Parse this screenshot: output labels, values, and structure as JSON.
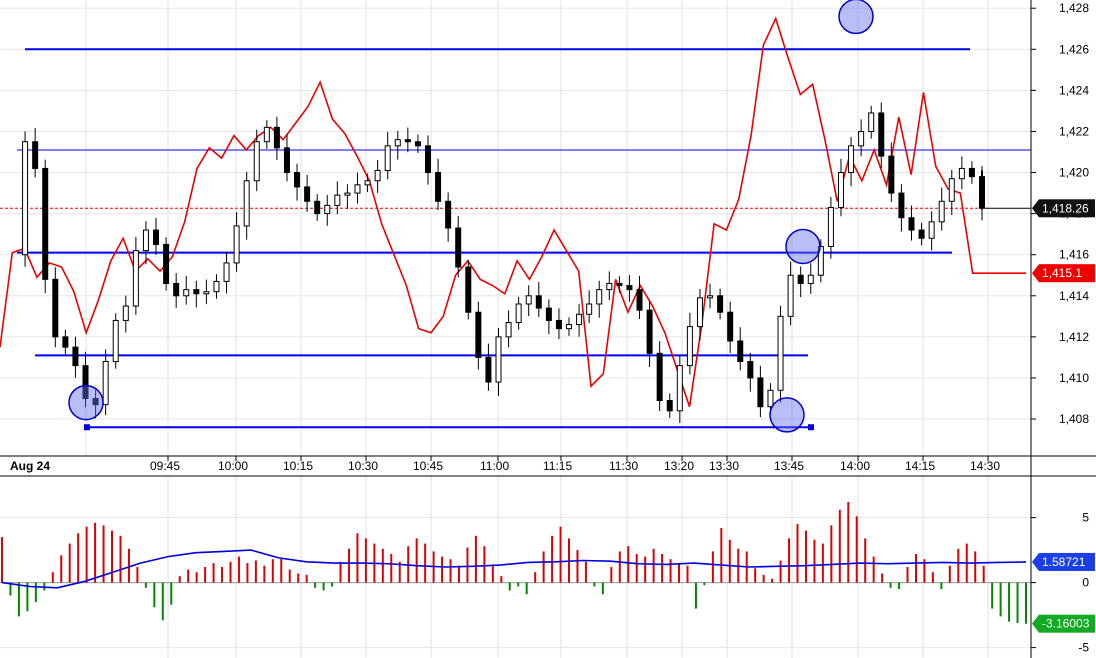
{
  "chart_data": [
    {
      "type": "candlestick",
      "title": "",
      "xlabel": "",
      "ylabel": "",
      "date_label": "Aug 24",
      "time_labels": [
        "09:45",
        "10:00",
        "10:15",
        "10:30",
        "10:45",
        "11:00",
        "11:15",
        "11:30",
        "13:20",
        "13:30",
        "13:45",
        "14:00",
        "14:15",
        "14:30"
      ],
      "ylim": [
        1406.2,
        1428.4
      ],
      "y_ticks": [
        {
          "v": 1408,
          "label": "1,408"
        },
        {
          "v": 1410,
          "label": "1,410"
        },
        {
          "v": 1412,
          "label": "1,412"
        },
        {
          "v": 1414,
          "label": "1,414"
        },
        {
          "v": 1416,
          "label": "1,416"
        },
        {
          "v": 1418,
          "label": "1,418"
        },
        {
          "v": 1420,
          "label": "1,420"
        },
        {
          "v": 1422,
          "label": "1,422"
        },
        {
          "v": 1424,
          "label": "1,424"
        },
        {
          "v": 1426,
          "label": "1,426"
        },
        {
          "v": 1428,
          "label": "1,428"
        }
      ],
      "grid": true,
      "last_price_label": "1,418.26",
      "last_price": 1418.26,
      "red_line_label": "1,415.1",
      "red_line_last": 1415.1,
      "horizontal_levels": [
        1426.0,
        1421.1,
        1416.1,
        1411.1,
        1407.6
      ],
      "circled_points": [
        {
          "time": "09:40",
          "price": 1408.8
        },
        {
          "time": "13:45",
          "price": 1408.2
        },
        {
          "time": "13:47",
          "price": 1416.4
        },
        {
          "time": "13:58",
          "price": 1427.6
        }
      ],
      "price_series": [
        1416.0,
        1421.5,
        1420.2,
        1414.8,
        1412.0,
        1411.5,
        1410.6,
        1409.0,
        1408.7,
        1410.8,
        1412.8,
        1413.5,
        1416.2,
        1417.2,
        1416.5,
        1414.6,
        1414.0,
        1414.3,
        1414.1,
        1414.2,
        1414.7,
        1415.6,
        1417.4,
        1419.6,
        1421.5,
        1422.2,
        1421.2,
        1420.0,
        1419.3,
        1418.6,
        1418.0,
        1418.4,
        1418.9,
        1419.0,
        1419.4,
        1419.6,
        1420.1,
        1421.3,
        1421.6,
        1421.5,
        1421.3,
        1420.0,
        1418.6,
        1417.3,
        1415.4,
        1413.2,
        1411.0,
        1409.8,
        1412.0,
        1412.7,
        1413.6,
        1414.0,
        1413.4,
        1412.8,
        1412.4,
        1412.6,
        1413.1,
        1413.6,
        1414.3,
        1414.6,
        1414.5,
        1414.3,
        1413.3,
        1411.2,
        1408.9,
        1408.4,
        1410.6,
        1412.5,
        1413.9,
        1414.0,
        1413.2,
        1411.8,
        1410.8,
        1410.0,
        1408.6,
        1409.4,
        1413.0,
        1415.0,
        1414.6,
        1415.0,
        1416.4,
        1418.3,
        1420.0,
        1421.3,
        1422.0,
        1422.9,
        1420.8,
        1419.0,
        1417.8,
        1417.2,
        1416.8,
        1417.6,
        1418.6,
        1419.7,
        1420.2,
        1419.8,
        1418.26
      ],
      "red_series": [
        1411.5,
        1416.1,
        1416.3,
        1414.9,
        1415.6,
        1415.4,
        1414.2,
        1412.2,
        1413.8,
        1415.7,
        1416.8,
        1415.2,
        1415.8,
        1415.2,
        1415.9,
        1417.6,
        1420.2,
        1421.2,
        1420.7,
        1421.8,
        1421.1,
        1421.8,
        1422.2,
        1421.6,
        1422.4,
        1423.2,
        1424.4,
        1422.6,
        1421.9,
        1420.8,
        1419.6,
        1417.5,
        1416.0,
        1414.5,
        1412.4,
        1412.2,
        1413.0,
        1415.0,
        1415.7,
        1414.8,
        1414.5,
        1414.1,
        1415.7,
        1414.8,
        1415.9,
        1417.2,
        1416.2,
        1415.2,
        1409.6,
        1410.2,
        1414.8,
        1413.2,
        1414.5,
        1413.5,
        1412.2,
        1410.4,
        1408.6,
        1412.6,
        1417.5,
        1417.2,
        1418.7,
        1421.8,
        1426.2,
        1427.5,
        1425.6,
        1423.8,
        1424.3,
        1421.6,
        1418.6,
        1420.8,
        1419.6,
        1421.1,
        1419.4,
        1422.7,
        1419.9,
        1423.9,
        1420.3,
        1419.2,
        1419.0,
        1415.1,
        1415.1
      ],
      "y_axis_total": 1428.4
    },
    {
      "type": "bar",
      "title": "",
      "ylim": [
        -5.8,
        8.2
      ],
      "y_ticks": [
        {
          "v": 5,
          "label": "5"
        },
        {
          "v": 0,
          "label": "0"
        },
        {
          "v": -5,
          "label": "-5"
        }
      ],
      "blue_line_label": "1.58721",
      "blue_line_last": 1.58721,
      "last_bar_label": "-3.16003",
      "last_bar_value": -3.16003,
      "colors": {
        "positive": "#dd0000",
        "negative": "#008800",
        "signal": "#0000dd"
      },
      "histogram": [
        3.5,
        -1.0,
        -2.6,
        -2.2,
        -1.5,
        -0.6,
        0.8,
        2.1,
        3.0,
        3.8,
        4.3,
        4.6,
        4.4,
        4.0,
        3.6,
        2.6,
        1.2,
        -0.4,
        -1.9,
        -2.9,
        -1.7,
        0.5,
        1.0,
        0.8,
        1.2,
        1.5,
        1.2,
        1.6,
        2.0,
        1.5,
        1.7,
        1.3,
        1.8,
        1.9,
        1.0,
        0.7,
        0.6,
        -0.4,
        -0.6,
        -0.3,
        1.6,
        2.6,
        3.8,
        3.4,
        3.0,
        2.6,
        2.2,
        1.6,
        2.8,
        3.4,
        3.0,
        2.4,
        2.0,
        1.8,
        1.3,
        2.7,
        3.6,
        2.8,
        1.4,
        0.5,
        -0.6,
        -0.3,
        -0.9,
        0.8,
        2.4,
        3.6,
        4.3,
        3.4,
        2.5,
        1.6,
        -0.3,
        -0.9,
        1.2,
        2.4,
        2.8,
        2.2,
        2.0,
        2.6,
        2.2,
        1.8,
        1.5,
        1.3,
        -2.0,
        -0.2,
        2.4,
        4.2,
        3.3,
        2.6,
        2.4,
        1.1,
        0.6,
        0.3,
        1.7,
        3.4,
        4.5,
        4.0,
        3.3,
        3.0,
        4.4,
        5.6,
        6.2,
        5.1,
        3.4,
        2.0,
        0.7,
        -0.4,
        -0.5,
        1.2,
        2.2,
        1.8,
        0.8,
        -0.5,
        1.3,
        2.6,
        3.0,
        2.4,
        1.3,
        -2.0,
        -2.6,
        -3.0,
        -3.1,
        -3.16003
      ],
      "signal_series": [
        0.0,
        -0.3,
        -0.4,
        0.1,
        0.8,
        1.5,
        2.0,
        2.3,
        2.4,
        2.5,
        1.9,
        1.6,
        1.5,
        1.5,
        1.45,
        1.3,
        1.2,
        1.25,
        1.35,
        1.55,
        1.6,
        1.7,
        1.65,
        1.45,
        1.4,
        1.5,
        1.35,
        1.2,
        1.25,
        1.3,
        1.4,
        1.5,
        1.45,
        1.5,
        1.55,
        1.5,
        1.55,
        1.58721
      ]
    }
  ]
}
